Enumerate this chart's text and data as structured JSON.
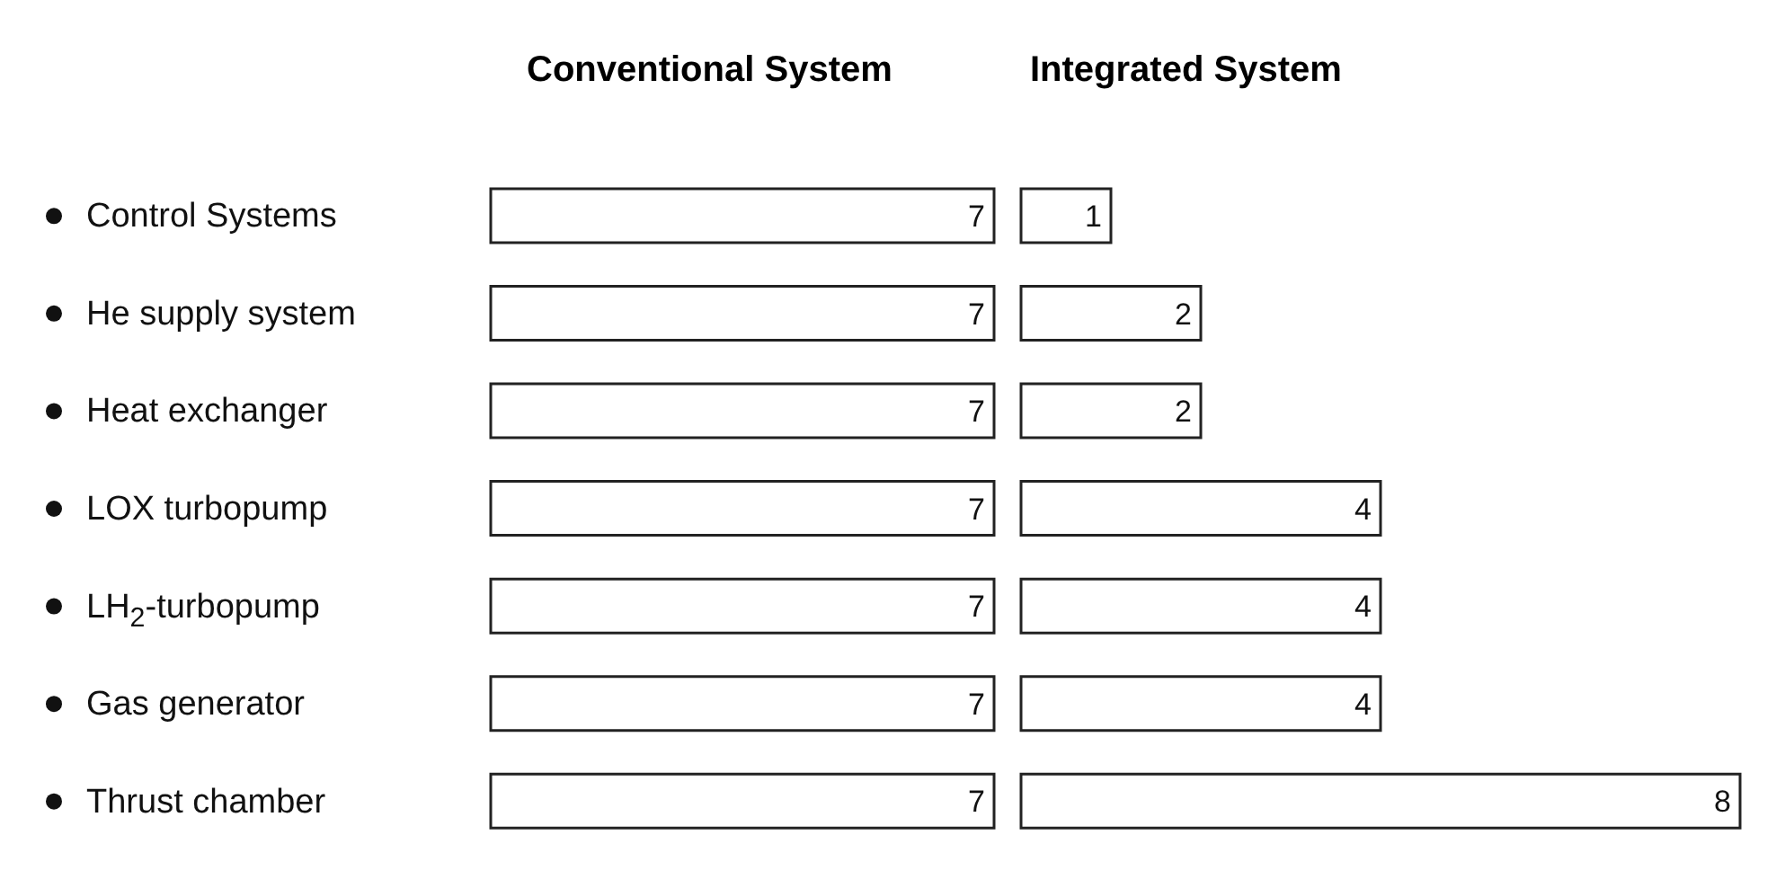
{
  "chart_data": [
    {
      "type": "bar",
      "title": "Conventional System",
      "orientation": "horizontal",
      "categories": [
        "Control Systems",
        "He supply system",
        "Heat exchanger",
        "LOX turbopump",
        "LH$_{2}$-turbopump",
        "Gas generator",
        "Thrust chamber"
      ],
      "values": [
        7,
        7,
        7,
        7,
        7,
        7,
        7
      ],
      "color": "#ffffff",
      "data_labels": true,
      "tick_labels": "y"
    },
    {
      "type": "bar",
      "title": "Integrated System",
      "orientation": "horizontal",
      "categories": [
        null,
        null,
        null,
        null,
        null,
        null,
        null
      ],
      "values": [
        1,
        2,
        2,
        4,
        4,
        4,
        8
      ],
      "color": "#ffffff",
      "data_labels": true,
      "tick_labels": false
    }
  ]
}
